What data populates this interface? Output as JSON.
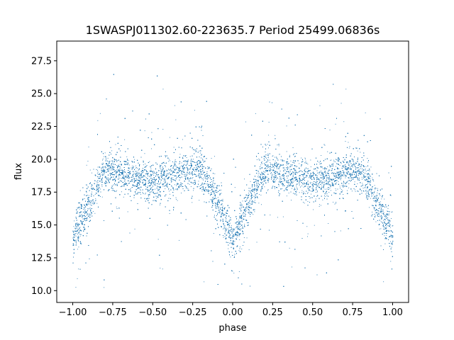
{
  "chart_data": {
    "type": "scatter",
    "title": "1SWASPJ011302.60-223635.7 Period 25499.06836s",
    "xlabel": "phase",
    "ylabel": "flux",
    "xlim": [
      -1.1,
      1.1
    ],
    "ylim": [
      9.1,
      29.0
    ],
    "x_ticks": [
      -1.0,
      -0.75,
      -0.5,
      -0.25,
      0.0,
      0.25,
      0.5,
      0.75,
      1.0
    ],
    "x_tick_labels": [
      "−1.00",
      "−0.75",
      "−0.50",
      "−0.25",
      "0.00",
      "0.25",
      "0.50",
      "0.75",
      "1.00"
    ],
    "y_ticks": [
      10.0,
      12.5,
      15.0,
      17.5,
      20.0,
      22.5,
      25.0,
      27.5
    ],
    "y_tick_labels": [
      "10.0",
      "12.5",
      "15.0",
      "17.5",
      "20.0",
      "22.5",
      "25.0",
      "27.5"
    ],
    "grid": false,
    "legend": "none",
    "marker_color": "#1f77b4",
    "light_curve": {
      "phase_range": [
        -1.0,
        1.0
      ],
      "baseline_flux": 19.3,
      "primary_eclipse": {
        "phase": [
          -1.0,
          0.0,
          1.0
        ],
        "min_flux": 14.0
      },
      "secondary_eclipse": {
        "phase": [
          -0.5,
          0.5
        ],
        "min_flux": 18.3
      }
    }
  }
}
